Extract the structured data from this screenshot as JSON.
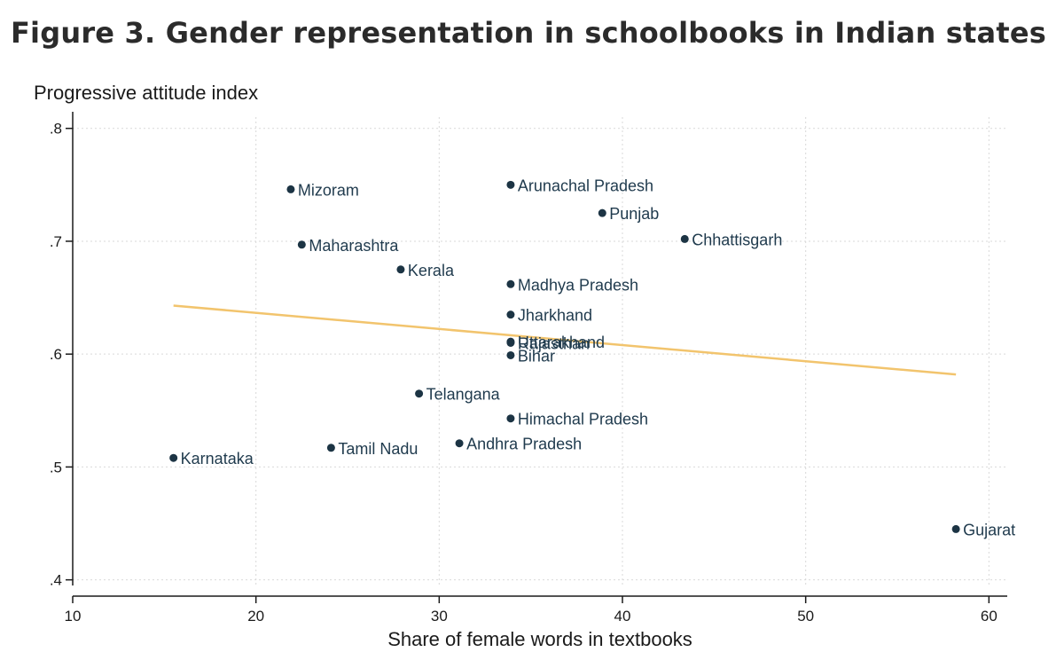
{
  "figure": {
    "title": "Figure 3. Gender representation in schoolbooks in Indian states"
  },
  "chart_data": {
    "type": "scatter",
    "xlabel": "Share of female words in textbooks",
    "ylabel": "Progressive attitude index",
    "xlim": [
      10,
      61
    ],
    "ylim": [
      0.395,
      0.81
    ],
    "xticks": [
      10,
      20,
      30,
      40,
      50,
      60
    ],
    "xtick_labels": [
      "10",
      "20",
      "30",
      "40",
      "50",
      "60"
    ],
    "yticks": [
      0.4,
      0.5,
      0.6,
      0.7,
      0.8
    ],
    "ytick_labels": [
      ".4",
      ".5",
      ".6",
      ".7",
      ".8"
    ],
    "grid": true,
    "points": [
      {
        "label": "Mizoram",
        "x": 21.9,
        "y": 0.746
      },
      {
        "label": "Arunachal Pradesh",
        "x": 33.9,
        "y": 0.75
      },
      {
        "label": "Punjab",
        "x": 38.9,
        "y": 0.725
      },
      {
        "label": "Chhattisgarh",
        "x": 43.4,
        "y": 0.702
      },
      {
        "label": "Maharashtra",
        "x": 22.5,
        "y": 0.697
      },
      {
        "label": "Kerala",
        "x": 27.9,
        "y": 0.675
      },
      {
        "label": "Madhya Pradesh",
        "x": 33.9,
        "y": 0.662
      },
      {
        "label": "Jharkhand",
        "x": 33.9,
        "y": 0.635
      },
      {
        "label": "Uttarakhand",
        "x": 33.9,
        "y": 0.611
      },
      {
        "label": "Rajasthan",
        "x": 33.9,
        "y": 0.61
      },
      {
        "label": "Bihar",
        "x": 33.9,
        "y": 0.599
      },
      {
        "label": "Telangana",
        "x": 28.9,
        "y": 0.565
      },
      {
        "label": "Himachal Pradesh",
        "x": 33.9,
        "y": 0.543
      },
      {
        "label": "Andhra Pradesh",
        "x": 31.1,
        "y": 0.521
      },
      {
        "label": "Tamil Nadu",
        "x": 24.1,
        "y": 0.517
      },
      {
        "label": "Karnataka",
        "x": 15.5,
        "y": 0.508
      },
      {
        "label": "Gujarat",
        "x": 58.2,
        "y": 0.445
      }
    ],
    "fit_line": {
      "x": [
        15.5,
        58.2
      ],
      "y": [
        0.643,
        0.582
      ]
    },
    "colors": {
      "point": "#1c3444",
      "label": "#1f3a4d",
      "fit": "#f2c46d",
      "axis": "#1a1a1a",
      "grid": "#d9d9d9"
    }
  }
}
